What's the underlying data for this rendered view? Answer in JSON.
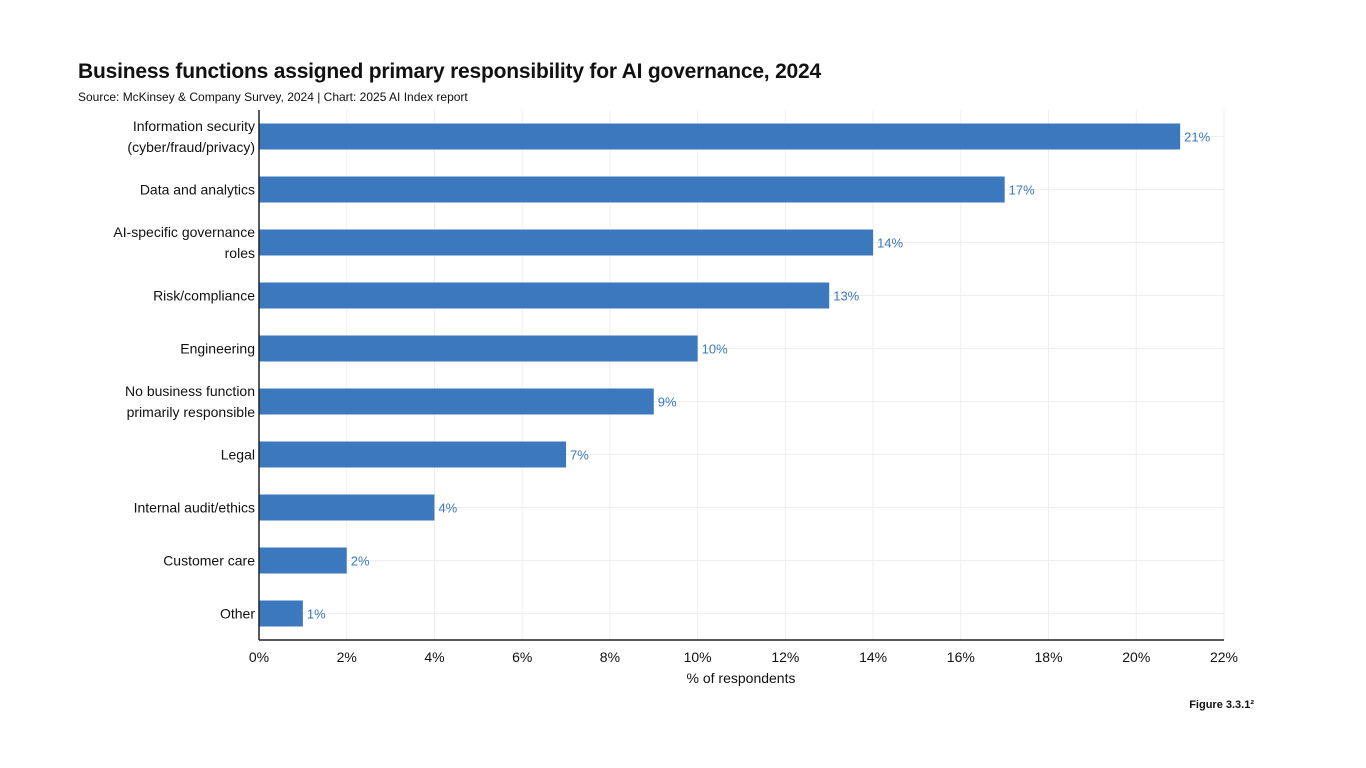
{
  "header": {
    "title": "Business functions assigned primary responsibility for AI governance, 2024",
    "subtitle": "Source: McKinsey & Company Survey, 2024 | Chart: 2025 AI Index report"
  },
  "footer": {
    "figure_label": "Figure 3.3.1²"
  },
  "colors": {
    "bar": "#3b78bd",
    "data_label": "#3b78bd",
    "grid": "#eeeeee",
    "axis": "#222222"
  },
  "chart_data": {
    "type": "bar",
    "orientation": "horizontal",
    "categories": [
      [
        "Information security",
        "(cyber/fraud/privacy)"
      ],
      [
        "Data and analytics"
      ],
      [
        "AI-specific governance",
        "roles"
      ],
      [
        "Risk/compliance"
      ],
      [
        "Engineering"
      ],
      [
        "No business function",
        "primarily responsible"
      ],
      [
        "Legal"
      ],
      [
        "Internal audit/ethics"
      ],
      [
        "Customer care"
      ],
      [
        "Other"
      ]
    ],
    "values": [
      21,
      17,
      14,
      13,
      10,
      9,
      7,
      4,
      2,
      1
    ],
    "data_labels": [
      "21%",
      "17%",
      "14%",
      "13%",
      "10%",
      "9%",
      "7%",
      "4%",
      "2%",
      "1%"
    ],
    "xlabel": "% of respondents",
    "ylabel": "",
    "xlim": [
      0,
      22
    ],
    "x_ticks": [
      0,
      2,
      4,
      6,
      8,
      10,
      12,
      14,
      16,
      18,
      20,
      22
    ],
    "x_tick_labels": [
      "0%",
      "2%",
      "4%",
      "6%",
      "8%",
      "10%",
      "12%",
      "14%",
      "16%",
      "18%",
      "20%",
      "22%"
    ],
    "grid": true
  }
}
